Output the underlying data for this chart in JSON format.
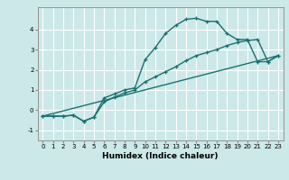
{
  "title": "",
  "xlabel": "Humidex (Indice chaleur)",
  "ylabel": "",
  "bg_color": "#cce8e8",
  "grid_color": "#ffffff",
  "line_color": "#1a7070",
  "xlim": [
    -0.5,
    23.5
  ],
  "ylim": [
    -1.5,
    5.1
  ],
  "xticks": [
    0,
    1,
    2,
    3,
    4,
    5,
    6,
    7,
    8,
    9,
    10,
    11,
    12,
    13,
    14,
    15,
    16,
    17,
    18,
    19,
    20,
    21,
    22,
    23
  ],
  "yticks": [
    -1,
    0,
    1,
    2,
    3,
    4
  ],
  "line1_x": [
    0,
    1,
    2,
    3,
    4,
    5,
    6,
    7,
    8,
    9,
    10,
    11,
    12,
    13,
    14,
    15,
    16,
    17,
    18,
    19,
    20,
    21,
    22,
    23
  ],
  "line1_y": [
    -0.3,
    -0.3,
    -0.3,
    -0.25,
    -0.55,
    -0.35,
    0.6,
    0.8,
    1.0,
    1.1,
    2.5,
    3.1,
    3.8,
    4.2,
    4.5,
    4.55,
    4.4,
    4.4,
    3.8,
    3.5,
    3.5,
    2.4,
    2.4,
    2.7
  ],
  "line2_x": [
    0,
    1,
    2,
    3,
    4,
    5,
    6,
    7,
    8,
    9,
    10,
    11,
    12,
    13,
    14,
    15,
    16,
    17,
    18,
    19,
    20,
    21,
    22,
    23
  ],
  "line2_y": [
    -0.3,
    -0.3,
    -0.3,
    -0.25,
    -0.55,
    -0.35,
    0.4,
    0.65,
    0.85,
    1.0,
    1.4,
    1.65,
    1.9,
    2.15,
    2.45,
    2.7,
    2.85,
    3.0,
    3.2,
    3.35,
    3.45,
    3.5,
    2.4,
    2.7
  ],
  "line3_x": [
    0,
    23
  ],
  "line3_y": [
    -0.3,
    2.7
  ],
  "marker": "+",
  "markersize": 3,
  "linewidth": 1.0
}
